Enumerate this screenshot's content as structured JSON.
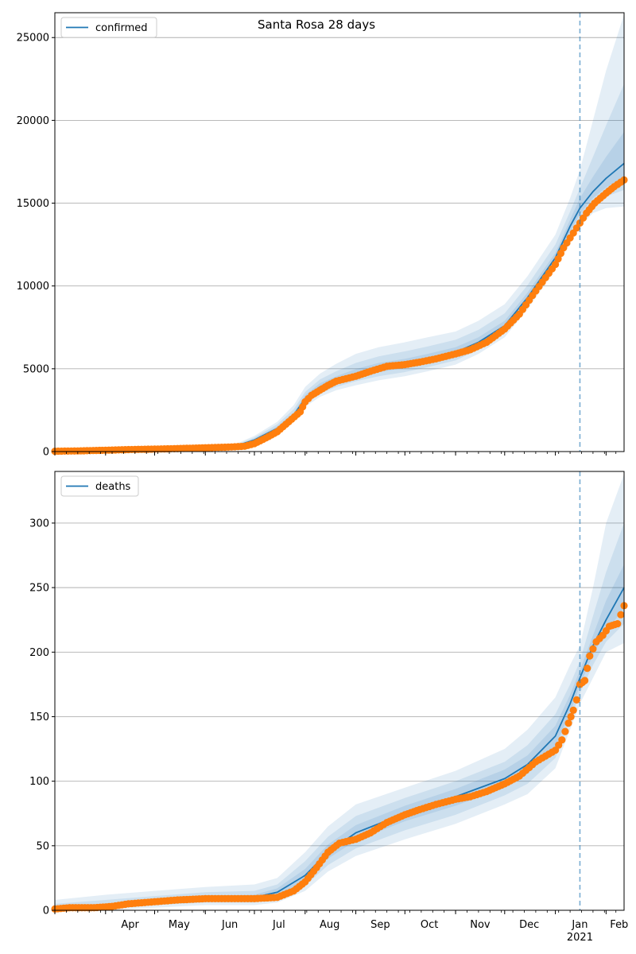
{
  "figure": {
    "title": "Santa Rosa 28 days"
  },
  "colors": {
    "model_line": "#1f77b4",
    "band": "#1f77b4",
    "observed": "#ff7f0e",
    "grid": "#b0b0b0",
    "forecast_marker": "#1f77b4"
  },
  "chart_data": [
    {
      "type": "line",
      "panel": "confirmed",
      "legend": [
        "confirmed"
      ],
      "legend_position": "top-left",
      "grid": "y",
      "xaxis": {
        "start": "2020-03-01",
        "end": "2021-02-12",
        "tick_labels_visible": false
      },
      "ylim": [
        0,
        26500
      ],
      "yticks": [
        0,
        5000,
        10000,
        15000,
        20000,
        25000
      ],
      "forecast_start": "2021-01-16",
      "model": {
        "dates": [
          "2020-03-01",
          "2020-04-01",
          "2020-05-01",
          "2020-06-01",
          "2020-06-20",
          "2020-07-01",
          "2020-07-15",
          "2020-07-25",
          "2020-08-01",
          "2020-08-10",
          "2020-08-20",
          "2020-09-01",
          "2020-09-15",
          "2020-10-01",
          "2020-10-15",
          "2020-11-01",
          "2020-11-15",
          "2020-12-01",
          "2020-12-15",
          "2021-01-01",
          "2021-01-10",
          "2021-01-16",
          "2021-01-24",
          "2021-02-01",
          "2021-02-12"
        ],
        "median": [
          30,
          70,
          150,
          220,
          350,
          700,
          1400,
          2200,
          3200,
          3900,
          4300,
          4700,
          5050,
          5300,
          5600,
          6000,
          6600,
          7600,
          9300,
          11700,
          13600,
          14700,
          15700,
          16500,
          17400
        ],
        "bands": [
          {
            "lower": [
              0,
              30,
              80,
              150,
              250,
              500,
              1100,
              1800,
              2700,
              3300,
              3700,
              4000,
              4300,
              4550,
              4850,
              5250,
              5900,
              6900,
              8600,
              11000,
              12600,
              13600,
              14400,
              14700,
              14800
            ],
            "upper": [
              80,
              140,
              240,
              320,
              480,
              950,
              1800,
              2800,
              3900,
              4700,
              5300,
              5900,
              6300,
              6600,
              6900,
              7250,
              7900,
              8900,
              10600,
              13100,
              15300,
              17000,
              20000,
              23000,
              26400
            ]
          },
          {
            "lower": [
              10,
              45,
              105,
              180,
              290,
              580,
              1200,
              1950,
              2850,
              3500,
              3900,
              4250,
              4550,
              4800,
              5100,
              5500,
              6150,
              7150,
              8850,
              11250,
              12950,
              14000,
              14900,
              15400,
              15800
            ],
            "upper": [
              60,
              110,
              200,
              280,
              420,
              850,
              1650,
              2550,
              3600,
              4350,
              4850,
              5350,
              5750,
              6050,
              6350,
              6750,
              7350,
              8350,
              10050,
              12500,
              14500,
              15900,
              17800,
              19700,
              22200
            ]
          },
          {
            "lower": [
              20,
              58,
              128,
              200,
              320,
              640,
              1300,
              2080,
              3030,
              3700,
              4100,
              4480,
              4800,
              5050,
              5350,
              5750,
              6380,
              7380,
              9070,
              11470,
              13270,
              14350,
              15300,
              15950,
              16600
            ],
            "upper": [
              45,
              88,
              175,
              250,
              385,
              780,
              1520,
              2350,
              3400,
              4120,
              4550,
              4980,
              5350,
              5600,
              5900,
              6300,
              6900,
              7900,
              9600,
              12000,
              14000,
              15300,
              16600,
              17800,
              19300
            ]
          }
        ]
      },
      "observed": {
        "dates": [
          "2020-03-01",
          "2020-03-15",
          "2020-04-01",
          "2020-04-15",
          "2020-05-01",
          "2020-05-15",
          "2020-06-01",
          "2020-06-15",
          "2020-06-25",
          "2020-07-01",
          "2020-07-08",
          "2020-07-15",
          "2020-07-22",
          "2020-07-29",
          "2020-08-01",
          "2020-08-05",
          "2020-08-10",
          "2020-08-15",
          "2020-08-20",
          "2020-09-01",
          "2020-09-10",
          "2020-09-20",
          "2020-10-01",
          "2020-10-10",
          "2020-10-20",
          "2020-11-01",
          "2020-11-10",
          "2020-11-20",
          "2020-12-01",
          "2020-12-10",
          "2020-12-20",
          "2021-01-01",
          "2021-01-06",
          "2021-01-12",
          "2021-01-16",
          "2021-01-20",
          "2021-01-25",
          "2021-02-01",
          "2021-02-06",
          "2021-02-12"
        ],
        "values": [
          20,
          40,
          80,
          120,
          150,
          180,
          230,
          270,
          320,
          480,
          820,
          1200,
          1800,
          2400,
          3000,
          3400,
          3700,
          4000,
          4250,
          4550,
          4850,
          5150,
          5250,
          5400,
          5600,
          5900,
          6150,
          6600,
          7400,
          8300,
          9700,
          11300,
          12300,
          13200,
          13800,
          14400,
          15000,
          15600,
          16000,
          16400
        ]
      }
    },
    {
      "type": "line",
      "panel": "deaths",
      "legend": [
        "deaths"
      ],
      "legend_position": "top-left",
      "grid": "y",
      "xaxis": {
        "start": "2020-03-01",
        "end": "2021-02-12",
        "tick_labels": [
          "Apr",
          "May",
          "Jun",
          "Jul",
          "Aug",
          "Sep",
          "Oct",
          "Nov",
          "Dec",
          "Jan",
          "Feb"
        ],
        "tick_dates": [
          "2020-04-01",
          "2020-05-01",
          "2020-06-01",
          "2020-07-01",
          "2020-08-01",
          "2020-09-01",
          "2020-10-01",
          "2020-11-01",
          "2020-12-01",
          "2021-01-01",
          "2021-02-01"
        ],
        "year_label": "2021"
      },
      "ylim": [
        0,
        340
      ],
      "yticks": [
        0,
        50,
        100,
        150,
        200,
        250,
        300
      ],
      "forecast_start": "2021-01-16",
      "model": {
        "dates": [
          "2020-03-01",
          "2020-04-01",
          "2020-05-01",
          "2020-06-01",
          "2020-07-01",
          "2020-07-15",
          "2020-08-01",
          "2020-08-15",
          "2020-09-01",
          "2020-10-01",
          "2020-11-01",
          "2020-12-01",
          "2020-12-15",
          "2021-01-01",
          "2021-01-10",
          "2021-01-16",
          "2021-01-24",
          "2021-02-01",
          "2021-02-12"
        ],
        "median": [
          1,
          3,
          7,
          9,
          10,
          14,
          27,
          45,
          60,
          75,
          88,
          102,
          113,
          135,
          160,
          180,
          205,
          225,
          250
        ],
        "bands": [
          {
            "lower": [
              0,
              0,
              2,
              4,
              4,
              6,
              15,
              30,
              42,
              55,
              67,
              82,
              90,
              110,
              140,
              160,
              180,
              200,
              207
            ],
            "upper": [
              8,
              12,
              15,
              18,
              20,
              25,
              45,
              65,
              82,
              95,
              108,
              125,
              140,
              165,
              190,
              205,
              250,
              300,
              338
            ]
          },
          {
            "lower": [
              0,
              1,
              4,
              6,
              6,
              9,
              19,
              35,
              48,
              62,
              74,
              89,
              98,
              118,
              147,
              168,
              190,
              208,
              222
            ],
            "upper": [
              5,
              8,
              11,
              14,
              15,
              20,
              38,
              57,
              73,
              87,
              100,
              115,
              128,
              152,
              175,
              193,
              228,
              262,
              300
            ]
          },
          {
            "lower": [
              0,
              2,
              5,
              7,
              8,
              11,
              23,
              40,
              54,
              69,
              81,
              95,
              106,
              127,
              153,
              174,
              198,
              216,
              234
            ],
            "upper": [
              3,
              5,
              9,
              11,
              12,
              17,
              32,
              51,
              66,
              81,
              94,
              109,
              120,
              143,
              167,
              186,
              213,
              240,
              268
            ]
          }
        ]
      },
      "observed": {
        "dates": [
          "2020-03-01",
          "2020-03-10",
          "2020-03-25",
          "2020-04-05",
          "2020-04-15",
          "2020-04-25",
          "2020-05-05",
          "2020-05-15",
          "2020-06-01",
          "2020-06-15",
          "2020-07-01",
          "2020-07-15",
          "2020-07-25",
          "2020-08-01",
          "2020-08-08",
          "2020-08-15",
          "2020-08-22",
          "2020-09-01",
          "2020-09-10",
          "2020-09-20",
          "2020-10-01",
          "2020-10-10",
          "2020-10-20",
          "2020-11-01",
          "2020-11-10",
          "2020-11-20",
          "2020-12-01",
          "2020-12-10",
          "2020-12-20",
          "2021-01-01",
          "2021-01-05",
          "2021-01-09",
          "2021-01-12",
          "2021-01-14",
          "2021-01-16",
          "2021-01-19",
          "2021-01-22",
          "2021-01-26",
          "2021-01-30",
          "2021-02-03",
          "2021-02-08",
          "2021-02-12"
        ],
        "values": [
          1,
          2,
          2,
          3,
          5,
          6,
          7,
          8,
          9,
          9,
          9,
          10,
          15,
          22,
          33,
          45,
          52,
          55,
          60,
          68,
          74,
          78,
          82,
          86,
          88,
          92,
          98,
          104,
          115,
          124,
          132,
          145,
          155,
          163,
          175,
          178,
          197,
          208,
          213,
          220,
          222,
          236
        ]
      }
    }
  ]
}
